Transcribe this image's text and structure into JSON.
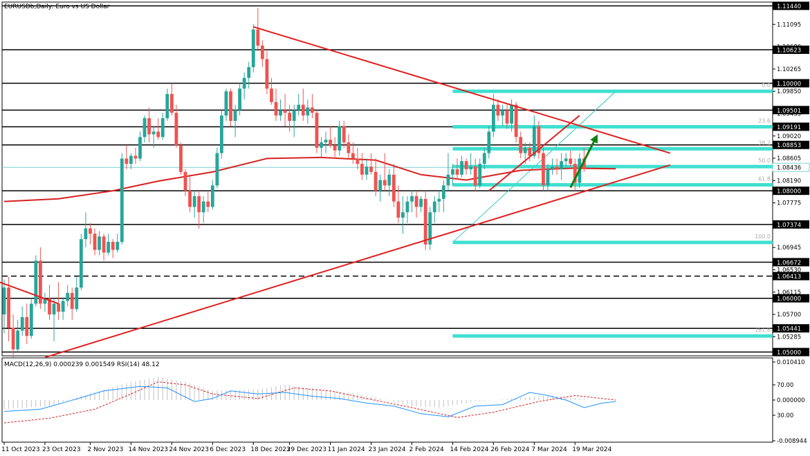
{
  "chart_data": {
    "type": "candlestick",
    "title": "EURUSDb,Daily: Euro vs US Dollar",
    "symbol": "EURUSDb",
    "timeframe": "Daily",
    "price_axis": {
      "ylim": [
        1.0493,
        1.1151
      ],
      "tick_labels": [
        "1.11440",
        "1.11095",
        "1.10680",
        "1.10265",
        "1.09850",
        "1.09435",
        "1.09020",
        "1.08605",
        "1.08190",
        "1.07775",
        "1.07360",
        "1.06945",
        "1.06530",
        "1.06115",
        "1.05700",
        "1.05285",
        "1.05000"
      ]
    },
    "x_axis": {
      "labels": [
        "11 Oct 2023",
        "23 Oct 2023",
        "2 Nov 2023",
        "14 Nov 2023",
        "24 Nov 2023",
        "6 Dec 2023",
        "18 Dec 2023",
        "29 Dec 2023",
        "11 Jan 2024",
        "23 Jan 2024",
        "2 Feb 2024",
        "14 Feb 2024",
        "26 Feb 2024",
        "7 Mar 2024",
        "19 Mar 2024"
      ],
      "label_bar_index": [
        0,
        9,
        19,
        28,
        37,
        46,
        55,
        63,
        72,
        81,
        90,
        99,
        108,
        117,
        126
      ]
    },
    "candles": [
      [
        1.057,
        1.0635,
        1.0535,
        1.062
      ],
      [
        1.062,
        1.064,
        1.052,
        1.0545
      ],
      [
        1.0545,
        1.057,
        1.049,
        1.0505
      ],
      [
        1.0505,
        1.056,
        1.05,
        1.054
      ],
      [
        1.054,
        1.0585,
        1.053,
        1.0565
      ],
      [
        1.0565,
        1.059,
        1.0515,
        1.053
      ],
      [
        1.053,
        1.06,
        1.0525,
        1.059
      ],
      [
        1.059,
        1.068,
        1.0585,
        1.067
      ],
      [
        1.067,
        1.0695,
        1.058,
        1.059
      ],
      [
        1.059,
        1.061,
        1.0575,
        1.06
      ],
      [
        1.06,
        1.0625,
        1.056,
        1.057
      ],
      [
        1.057,
        1.06,
        1.052,
        1.059
      ],
      [
        1.059,
        1.063,
        1.056,
        1.0575
      ],
      [
        1.0575,
        1.06,
        1.056,
        1.0595
      ],
      [
        1.0595,
        1.0625,
        1.0585,
        1.061
      ],
      [
        1.061,
        1.062,
        1.056,
        1.058
      ],
      [
        1.058,
        1.064,
        1.0575,
        1.062
      ],
      [
        1.062,
        1.072,
        1.0615,
        1.071
      ],
      [
        1.071,
        1.076,
        1.0695,
        1.073
      ],
      [
        1.073,
        1.074,
        1.07,
        1.072
      ],
      [
        1.072,
        1.073,
        1.068,
        1.069
      ],
      [
        1.069,
        1.0725,
        1.068,
        1.0715
      ],
      [
        1.0715,
        1.072,
        1.067,
        1.0685
      ],
      [
        1.0685,
        1.072,
        1.068,
        1.0705
      ],
      [
        1.0705,
        1.071,
        1.0675,
        1.069
      ],
      [
        1.069,
        1.072,
        1.0685,
        1.0705
      ],
      [
        1.0705,
        1.087,
        1.07,
        1.086
      ],
      [
        1.086,
        1.0885,
        1.084,
        1.085
      ],
      [
        1.085,
        1.087,
        1.084,
        1.0865
      ],
      [
        1.0865,
        1.088,
        1.085,
        1.086
      ],
      [
        1.086,
        1.091,
        1.0855,
        1.09
      ],
      [
        1.09,
        1.094,
        1.089,
        1.0935
      ],
      [
        1.0935,
        1.0955,
        1.089,
        1.0905
      ],
      [
        1.0905,
        1.092,
        1.088,
        1.091
      ],
      [
        1.091,
        1.0935,
        1.0895,
        1.09
      ],
      [
        1.09,
        1.0945,
        1.0895,
        1.0935
      ],
      [
        1.0935,
        1.099,
        1.093,
        1.098
      ],
      [
        1.098,
        1.1,
        1.094,
        1.0945
      ],
      [
        1.0945,
        1.096,
        1.088,
        1.0885
      ],
      [
        1.0885,
        1.089,
        1.083,
        1.0835
      ],
      [
        1.0835,
        1.084,
        1.079,
        1.08
      ],
      [
        1.08,
        1.083,
        1.076,
        1.077
      ],
      [
        1.077,
        1.08,
        1.075,
        1.079
      ],
      [
        1.079,
        1.08,
        1.073,
        1.076
      ],
      [
        1.076,
        1.079,
        1.074,
        1.078
      ],
      [
        1.078,
        1.08,
        1.076,
        1.077
      ],
      [
        1.077,
        1.082,
        1.0765,
        1.081
      ],
      [
        1.081,
        1.088,
        1.0805,
        1.087
      ],
      [
        1.087,
        1.095,
        1.086,
        1.094
      ],
      [
        1.094,
        1.099,
        1.093,
        1.0985
      ],
      [
        1.0985,
        1.099,
        1.092,
        1.093
      ],
      [
        1.093,
        1.096,
        1.09,
        1.095
      ],
      [
        1.095,
        1.1,
        1.094,
        1.099
      ],
      [
        1.099,
        1.102,
        1.097,
        1.101
      ],
      [
        1.101,
        1.104,
        1.099,
        1.103
      ],
      [
        1.103,
        1.111,
        1.102,
        1.11
      ],
      [
        1.11,
        1.114,
        1.106,
        1.107
      ],
      [
        1.107,
        1.108,
        1.103,
        1.1045
      ],
      [
        1.1045,
        1.106,
        1.098,
        1.099
      ],
      [
        1.099,
        1.101,
        1.096,
        1.0965
      ],
      [
        1.0965,
        1.099,
        1.093,
        1.094
      ],
      [
        1.094,
        1.097,
        1.093,
        1.095
      ],
      [
        1.095,
        1.098,
        1.092,
        1.0945
      ],
      [
        1.0945,
        1.096,
        1.091,
        1.093
      ],
      [
        1.093,
        1.096,
        1.09,
        1.095
      ],
      [
        1.095,
        1.098,
        1.094,
        1.096
      ],
      [
        1.096,
        1.099,
        1.093,
        1.094
      ],
      [
        1.094,
        1.097,
        1.0925,
        1.0955
      ],
      [
        1.0955,
        1.098,
        1.0935,
        1.0945
      ],
      [
        1.0945,
        1.095,
        1.087,
        1.088
      ],
      [
        1.088,
        1.09,
        1.086,
        1.089
      ],
      [
        1.089,
        1.091,
        1.087,
        1.0895
      ],
      [
        1.0895,
        1.092,
        1.088,
        1.0885
      ],
      [
        1.0885,
        1.09,
        1.086,
        1.0875
      ],
      [
        1.0875,
        1.093,
        1.0865,
        1.092
      ],
      [
        1.092,
        1.093,
        1.088,
        1.089
      ],
      [
        1.089,
        1.0905,
        1.086,
        1.087
      ],
      [
        1.087,
        1.089,
        1.085,
        1.086
      ],
      [
        1.086,
        1.088,
        1.084,
        1.085
      ],
      [
        1.085,
        1.087,
        1.082,
        1.083
      ],
      [
        1.083,
        1.086,
        1.082,
        1.0845
      ],
      [
        1.0845,
        1.087,
        1.083,
        1.0835
      ],
      [
        1.0835,
        1.086,
        1.079,
        1.08
      ],
      [
        1.08,
        1.083,
        1.078,
        1.082
      ],
      [
        1.082,
        1.087,
        1.08,
        1.081
      ],
      [
        1.081,
        1.084,
        1.079,
        1.083
      ],
      [
        1.083,
        1.085,
        1.077,
        1.078
      ],
      [
        1.078,
        1.081,
        1.074,
        1.075
      ],
      [
        1.075,
        1.079,
        1.072,
        1.076
      ],
      [
        1.076,
        1.079,
        1.074,
        1.078
      ],
      [
        1.078,
        1.08,
        1.076,
        1.079
      ],
      [
        1.079,
        1.08,
        1.075,
        1.077
      ],
      [
        1.077,
        1.079,
        1.076,
        1.0785
      ],
      [
        1.0785,
        1.08,
        1.069,
        1.07
      ],
      [
        1.07,
        1.077,
        1.069,
        1.076
      ],
      [
        1.076,
        1.079,
        1.074,
        1.078
      ],
      [
        1.078,
        1.08,
        1.076,
        1.0785
      ],
      [
        1.0785,
        1.082,
        1.076,
        1.081
      ],
      [
        1.081,
        1.087,
        1.08,
        1.083
      ],
      [
        1.083,
        1.085,
        1.081,
        1.084
      ],
      [
        1.084,
        1.086,
        1.082,
        1.083
      ],
      [
        1.083,
        1.0865,
        1.0825,
        1.0855
      ],
      [
        1.0855,
        1.086,
        1.083,
        1.084
      ],
      [
        1.084,
        1.087,
        1.083,
        1.0845
      ],
      [
        1.0845,
        1.086,
        1.08,
        1.081
      ],
      [
        1.081,
        1.086,
        1.0805,
        1.085
      ],
      [
        1.085,
        1.088,
        1.084,
        1.087
      ],
      [
        1.087,
        1.092,
        1.086,
        1.091
      ],
      [
        1.091,
        1.098,
        1.09,
        1.096
      ],
      [
        1.096,
        1.097,
        1.093,
        1.094
      ],
      [
        1.094,
        1.096,
        1.092,
        1.095
      ],
      [
        1.095,
        1.096,
        1.0915,
        1.0925
      ],
      [
        1.0925,
        1.097,
        1.091,
        1.096
      ],
      [
        1.096,
        1.0965,
        1.089,
        1.09
      ],
      [
        1.09,
        1.091,
        1.086,
        1.087
      ],
      [
        1.087,
        1.089,
        1.085,
        1.088
      ],
      [
        1.088,
        1.089,
        1.0855,
        1.0865
      ],
      [
        1.0865,
        1.094,
        1.086,
        1.092
      ],
      [
        1.092,
        1.093,
        1.086,
        1.087
      ],
      [
        1.087,
        1.088,
        1.08,
        1.081
      ],
      [
        1.081,
        1.085,
        1.08,
        1.084
      ],
      [
        1.084,
        1.086,
        1.083,
        1.0845
      ],
      [
        1.0845,
        1.086,
        1.083,
        1.084
      ],
      [
        1.084,
        1.087,
        1.082,
        1.0855
      ],
      [
        1.0855,
        1.087,
        1.084,
        1.086
      ],
      [
        1.086,
        1.0875,
        1.0845,
        1.085
      ],
      [
        1.085,
        1.086,
        1.08,
        1.0815
      ],
      [
        1.0815,
        1.087,
        1.0805,
        1.086
      ],
      [
        1.086,
        1.088,
        1.0835,
        1.084
      ]
    ],
    "current_price": 1.08436,
    "horizontal_levels": [
      {
        "price": 1.1144,
        "label": "1.11440",
        "style": "solid"
      },
      {
        "price": 1.10623,
        "label": "1.10623",
        "style": "solid"
      },
      {
        "price": 1.1,
        "label": "1.10000",
        "style": "solid"
      },
      {
        "price": 1.09501,
        "label": "1.09501",
        "style": "solid"
      },
      {
        "price": 1.09191,
        "label": "1.09191",
        "style": "solid"
      },
      {
        "price": 1.08853,
        "label": "1.08853",
        "style": "solid"
      },
      {
        "price": 1.08,
        "label": "1.08000",
        "style": "solid"
      },
      {
        "price": 1.07374,
        "label": "1.07374",
        "style": "solid"
      },
      {
        "price": 1.06672,
        "label": "1.06672",
        "style": "solid"
      },
      {
        "price": 1.06413,
        "label": "1.06413",
        "style": "dashed"
      },
      {
        "price": 1.06,
        "label": "1.06000",
        "style": "solid"
      },
      {
        "price": 1.05441,
        "label": "1.05441",
        "style": "solid"
      },
      {
        "price": 1.05,
        "label": "1.05000",
        "style": "solid"
      }
    ],
    "fibonacci": {
      "start_bar": 99,
      "end_bar": 135,
      "levels": [
        {
          "label": "0.0",
          "price": 1.0985
        },
        {
          "label": "23.6",
          "price": 1.0919
        },
        {
          "label": "38.2",
          "price": 1.0878
        },
        {
          "label": "50.0",
          "price": 1.0845
        },
        {
          "label": "61.8",
          "price": 1.0811
        },
        {
          "label": "100.0",
          "price": 1.0704
        },
        {
          "label": "161.8",
          "price": 1.053
        }
      ]
    },
    "trendlines": [
      {
        "from": [
          55,
          1.1105
        ],
        "to": [
          147,
          1.087
        ]
      },
      {
        "from": [
          9,
          1.049
        ],
        "to": [
          147,
          1.0848
        ]
      },
      {
        "from": [
          107,
          1.08
        ],
        "to": [
          127,
          1.094
        ]
      },
      {
        "from": [
          -1,
          1.063
        ],
        "to": [
          12,
          1.059
        ]
      }
    ],
    "moving_average": [
      [
        0,
        1.078
      ],
      [
        12,
        1.0785
      ],
      [
        24,
        1.08
      ],
      [
        34,
        1.0818
      ],
      [
        46,
        1.0835
      ],
      [
        58,
        1.086
      ],
      [
        70,
        1.0862
      ],
      [
        82,
        1.0857
      ],
      [
        92,
        1.083
      ],
      [
        102,
        1.082
      ],
      [
        114,
        1.0838
      ],
      [
        126,
        1.0842
      ],
      [
        135,
        1.0841
      ]
    ],
    "arrow": {
      "from": [
        125,
        1.0806
      ],
      "to": [
        131,
        1.0905
      ]
    },
    "indicator": {
      "title": "MACD(12,26,9) 0.000239 0.001549 RSI(14) 48.12",
      "tick_labels": [
        "0.010410",
        "70.00",
        "0.000000",
        "30.00",
        "-0.008944"
      ],
      "rsi_scale": [
        0,
        100
      ],
      "macd_scale": [
        -0.008944,
        0.01041
      ],
      "rsi": [
        [
          0,
          35
        ],
        [
          8,
          38
        ],
        [
          14,
          48
        ],
        [
          22,
          62
        ],
        [
          30,
          68
        ],
        [
          36,
          66
        ],
        [
          42,
          48
        ],
        [
          46,
          52
        ],
        [
          50,
          62
        ],
        [
          56,
          58
        ],
        [
          62,
          60
        ],
        [
          68,
          55
        ],
        [
          74,
          52
        ],
        [
          80,
          46
        ],
        [
          86,
          42
        ],
        [
          92,
          32
        ],
        [
          98,
          28
        ],
        [
          104,
          42
        ],
        [
          110,
          44
        ],
        [
          116,
          60
        ],
        [
          120,
          56
        ],
        [
          124,
          50
        ],
        [
          128,
          40
        ],
        [
          132,
          46
        ],
        [
          135,
          48
        ]
      ],
      "signal": [
        [
          0,
          20
        ],
        [
          10,
          26
        ],
        [
          20,
          38
        ],
        [
          28,
          58
        ],
        [
          34,
          74
        ],
        [
          40,
          70
        ],
        [
          46,
          58
        ],
        [
          56,
          52
        ],
        [
          64,
          66
        ],
        [
          72,
          62
        ],
        [
          80,
          52
        ],
        [
          90,
          40
        ],
        [
          100,
          27
        ],
        [
          108,
          34
        ],
        [
          118,
          48
        ],
        [
          126,
          56
        ],
        [
          135,
          50
        ]
      ],
      "histogram": [
        [
          0,
          38
        ],
        [
          10,
          42
        ],
        [
          20,
          60
        ],
        [
          28,
          74
        ],
        [
          34,
          80
        ],
        [
          40,
          74
        ],
        [
          46,
          62
        ],
        [
          56,
          64
        ],
        [
          62,
          70
        ],
        [
          70,
          64
        ],
        [
          80,
          56
        ],
        [
          90,
          42
        ],
        [
          96,
          40
        ],
        [
          104,
          48
        ],
        [
          112,
          52
        ],
        [
          120,
          56
        ],
        [
          128,
          52
        ],
        [
          135,
          50
        ]
      ]
    }
  }
}
